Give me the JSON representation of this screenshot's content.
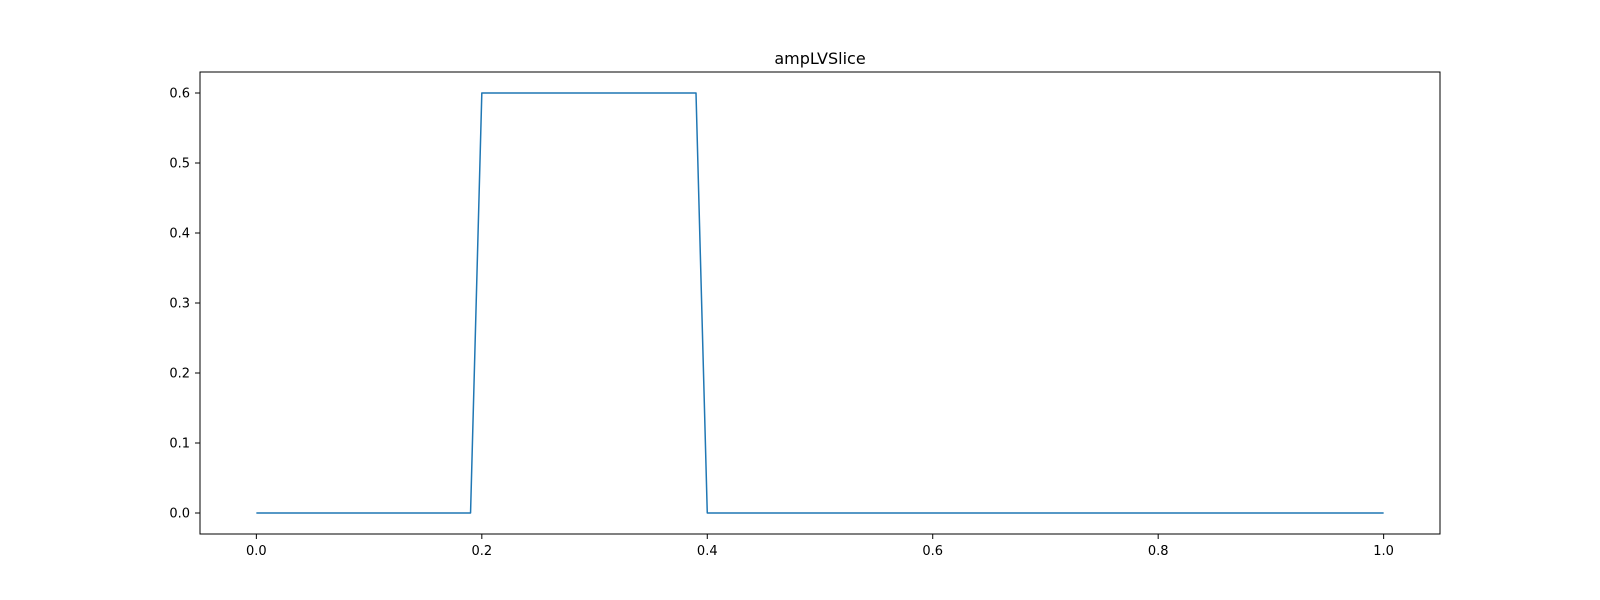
{
  "chart_data": {
    "type": "line",
    "title": "ampLVSlice",
    "xlabel": "",
    "ylabel": "",
    "xlim": [
      -0.05,
      1.05
    ],
    "ylim": [
      -0.03,
      0.63
    ],
    "xticks": [
      0.0,
      0.2,
      0.4,
      0.6,
      0.8,
      1.0
    ],
    "xtick_labels": [
      "0.0",
      "0.2",
      "0.4",
      "0.6",
      "0.8",
      "1.0"
    ],
    "yticks": [
      0.0,
      0.1,
      0.2,
      0.3,
      0.4,
      0.5,
      0.6
    ],
    "ytick_labels": [
      "0.0",
      "0.1",
      "0.2",
      "0.3",
      "0.4",
      "0.5",
      "0.6"
    ],
    "grid": false,
    "legend": "none",
    "series": [
      {
        "color": "#1f77b4",
        "x": [
          0.0,
          0.19,
          0.2,
          0.39,
          0.4,
          1.0
        ],
        "y": [
          0.0,
          0.0,
          0.6,
          0.6,
          0.0,
          0.0
        ]
      }
    ]
  }
}
